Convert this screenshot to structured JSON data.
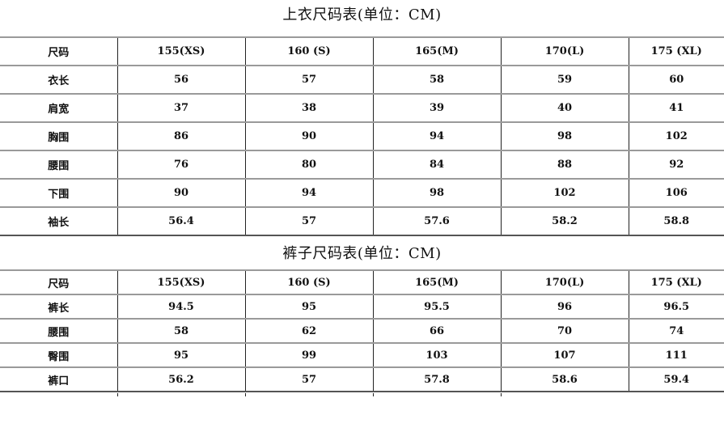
{
  "tops": {
    "title": "上衣尺码表(单位：CM)",
    "header": [
      "尺码",
      "155(XS)",
      "160 (S)",
      "165(M)",
      "170(L)",
      "175 (XL)"
    ],
    "rows": [
      [
        "衣长",
        "56",
        "57",
        "58",
        "59",
        "60"
      ],
      [
        "肩宽",
        "37",
        "38",
        "39",
        "40",
        "41"
      ],
      [
        "胸围",
        "86",
        "90",
        "94",
        "98",
        "102"
      ],
      [
        "腰围",
        "76",
        "80",
        "84",
        "88",
        "92"
      ],
      [
        "下围",
        "90",
        "94",
        "98",
        "102",
        "106"
      ],
      [
        "袖长",
        "56.4",
        "57",
        "57.6",
        "58.2",
        "58.8"
      ]
    ]
  },
  "pants": {
    "title": "裤子尺码表(单位：CM)",
    "header": [
      "尺码",
      "155(XS)",
      "160 (S)",
      "165(M)",
      "170(L)",
      "175 (XL)"
    ],
    "rows": [
      [
        "裤长",
        "94.5",
        "95",
        "95.5",
        "96",
        "96.5"
      ],
      [
        "腰围",
        "58",
        "62",
        "66",
        "70",
        "74"
      ],
      [
        "臀围",
        "95",
        "99",
        "103",
        "107",
        "111"
      ],
      [
        "裤口",
        "56.2",
        "57",
        "57.8",
        "58.6",
        "59.4"
      ]
    ]
  }
}
